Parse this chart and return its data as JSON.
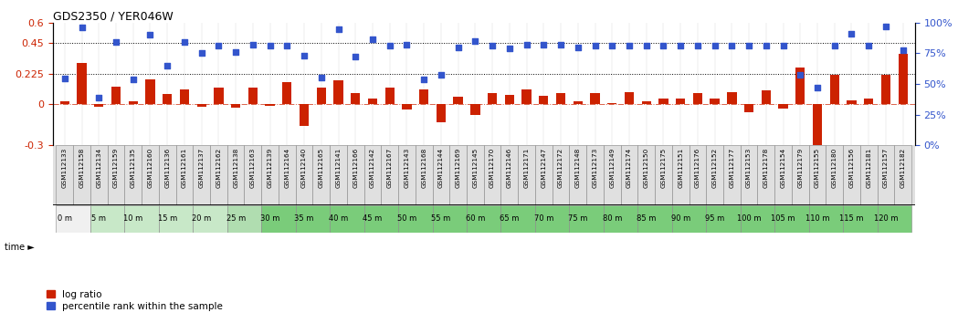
{
  "title": "GDS2350 / YER046W",
  "x_labels": [
    "GSM112133",
    "GSM112158",
    "GSM112134",
    "GSM112159",
    "GSM112135",
    "GSM112160",
    "GSM112136",
    "GSM112161",
    "GSM112137",
    "GSM112162",
    "GSM112138",
    "GSM112163",
    "GSM112139",
    "GSM112164",
    "GSM112140",
    "GSM112165",
    "GSM112141",
    "GSM112166",
    "GSM112142",
    "GSM112167",
    "GSM112143",
    "GSM112168",
    "GSM112144",
    "GSM112169",
    "GSM112145",
    "GSM112170",
    "GSM112146",
    "GSM112171",
    "GSM112147",
    "GSM112172",
    "GSM112148",
    "GSM112173",
    "GSM112149",
    "GSM112174",
    "GSM112150",
    "GSM112175",
    "GSM112151",
    "GSM112176",
    "GSM112152",
    "GSM112177",
    "GSM112153",
    "GSM112178",
    "GSM112154",
    "GSM112179",
    "GSM112155",
    "GSM112180",
    "GSM112156",
    "GSM112181",
    "GSM112157",
    "GSM112182"
  ],
  "time_labels": [
    "0 m",
    "5 m",
    "10 m",
    "15 m",
    "20 m",
    "25 m",
    "30 m",
    "35 m",
    "40 m",
    "45 m",
    "50 m",
    "55 m",
    "60 m",
    "65 m",
    "70 m",
    "75 m",
    "80 m",
    "85 m",
    "90 m",
    "95 m",
    "100 m",
    "105 m",
    "110 m",
    "115 m",
    "120 m"
  ],
  "log_ratio": [
    0.02,
    0.305,
    -0.02,
    0.13,
    0.02,
    0.185,
    0.075,
    0.11,
    -0.02,
    0.125,
    -0.025,
    0.125,
    -0.01,
    0.165,
    -0.155,
    0.125,
    0.18,
    0.08,
    0.04,
    0.12,
    -0.04,
    0.11,
    -0.13,
    0.055,
    -0.08,
    0.085,
    0.07,
    0.11,
    0.06,
    0.085,
    0.02,
    0.085,
    0.01,
    0.09,
    0.02,
    0.04,
    0.04,
    0.08,
    0.04,
    0.09,
    -0.055,
    0.105,
    -0.03,
    0.27,
    -0.32,
    0.22,
    0.03,
    0.04,
    0.22,
    0.37
  ],
  "percentile_rank": [
    0.19,
    0.565,
    0.05,
    0.46,
    0.185,
    0.51,
    0.285,
    0.46,
    0.375,
    0.43,
    0.385,
    0.44,
    0.43,
    0.43,
    0.36,
    0.2,
    0.55,
    0.35,
    0.475,
    0.43,
    0.44,
    0.185,
    0.22,
    0.415,
    0.465,
    0.43,
    0.41,
    0.44,
    0.44,
    0.44,
    0.415,
    0.43,
    0.43,
    0.43,
    0.43,
    0.43,
    0.43,
    0.43,
    0.43,
    0.43,
    0.43,
    0.43,
    0.43,
    0.22,
    0.12,
    0.43,
    0.52,
    0.43,
    0.57,
    0.4
  ],
  "bar_color": "#cc2200",
  "dot_color": "#3355cc",
  "bg_color": "#ffffff",
  "left_ylim": [
    -0.3,
    0.6
  ],
  "right_ylim": [
    0,
    1.0
  ],
  "left_yticks": [
    -0.3,
    0.0,
    0.225,
    0.45,
    0.6
  ],
  "left_yticklabels": [
    "-0.3",
    "0",
    "0.225",
    "0.45",
    "0.6"
  ],
  "right_yticks": [
    0.0,
    0.25,
    0.5,
    0.75,
    1.0
  ],
  "right_yticklabels": [
    "0%",
    "25%",
    "50%",
    "75%",
    "100%"
  ],
  "hlines": [
    0.45,
    0.225
  ],
  "zero_line": 0.0,
  "xtick_bg": "#e0e0e0",
  "time_cell_colors": [
    "#f0f0f0",
    "#c8e8c8",
    "#c8e8c8",
    "#c8e8c8",
    "#c8e8c8",
    "#b0ddb0",
    "#7acc7a",
    "#7acc7a",
    "#7acc7a",
    "#7acc7a",
    "#7acc7a",
    "#7acc7a",
    "#7acc7a",
    "#7acc7a",
    "#7acc7a",
    "#7acc7a",
    "#7acc7a",
    "#7acc7a",
    "#7acc7a",
    "#7acc7a",
    "#7acc7a",
    "#7acc7a",
    "#7acc7a",
    "#7acc7a",
    "#7acc7a"
  ]
}
